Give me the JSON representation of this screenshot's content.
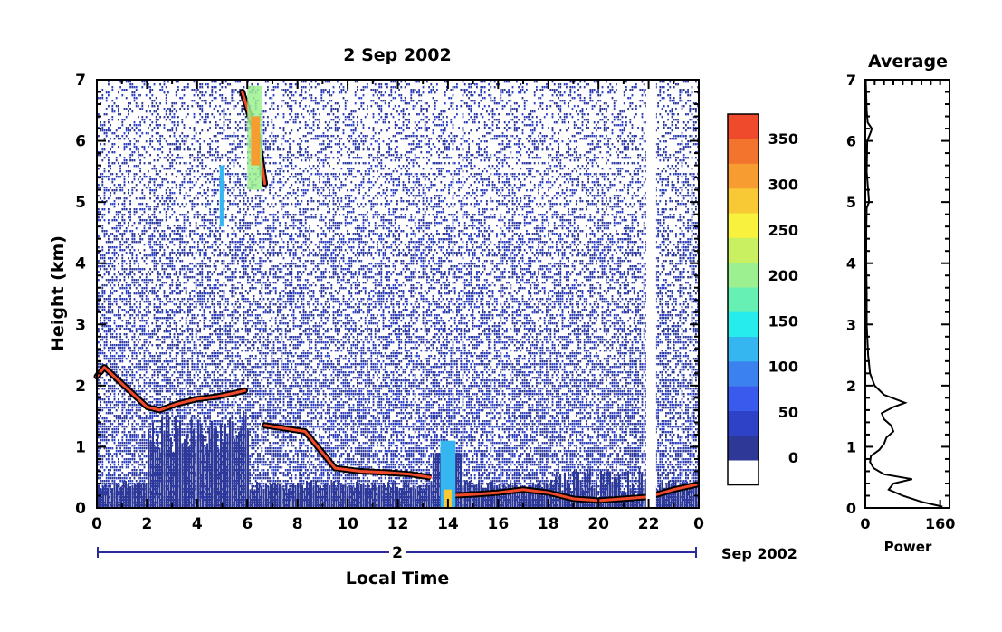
{
  "chart_data": [
    {
      "type": "heatmap",
      "title": "2 Sep 2002",
      "xlabel": "Local Time",
      "ylabel": "Height (km)",
      "x_ticks": [
        "0",
        "2",
        "4",
        "6",
        "8",
        "10",
        "12",
        "14",
        "16",
        "18",
        "20",
        "22",
        "0"
      ],
      "xlim": [
        0,
        24
      ],
      "y_ticks": [
        "0",
        "1",
        "2",
        "3",
        "4",
        "5",
        "6",
        "7"
      ],
      "ylim": [
        0,
        7
      ],
      "date_axis": {
        "day": "2",
        "month_year": "Sep 2002"
      },
      "colorbar": {
        "tick_labels": [
          "0",
          "50",
          "100",
          "150",
          "200",
          "250",
          "300",
          "350"
        ],
        "range": [
          0,
          380
        ],
        "colors": [
          "#ffffff",
          "#2e3896",
          "#2e42c8",
          "#3a5aee",
          "#3b82f0",
          "#35b6f0",
          "#26ecee",
          "#67f0b4",
          "#9cf090",
          "#c8f060",
          "#f8f23e",
          "#f8c835",
          "#f69c30",
          "#f3742c",
          "#f04a2c"
        ]
      },
      "features": [
        {
          "desc": "mixed-layer top layer",
          "x": [
            0.0,
            0.3,
            2.0,
            2.5,
            3.2,
            4.0,
            4.8,
            5.5,
            5.9
          ],
          "y": [
            2.15,
            2.3,
            1.65,
            1.6,
            1.7,
            1.78,
            1.82,
            1.88,
            1.92
          ]
        },
        {
          "desc": "low layer",
          "x": [
            6.7,
            7.5,
            8.3,
            9.5,
            10.5,
            11.5,
            12.5,
            13.3
          ],
          "y": [
            1.35,
            1.3,
            1.25,
            0.65,
            0.6,
            0.58,
            0.55,
            0.5
          ]
        },
        {
          "desc": "surface layer",
          "x": [
            14.0,
            15.0,
            16.0,
            17.0,
            18.0,
            19.0,
            20.0,
            21.0,
            22.0,
            23.0,
            23.9
          ],
          "y": [
            0.2,
            0.22,
            0.25,
            0.3,
            0.25,
            0.15,
            0.12,
            0.15,
            0.18,
            0.3,
            0.38
          ]
        },
        {
          "desc": "high cloud",
          "x": [
            5.8,
            6.1,
            6.4,
            6.7
          ],
          "y": [
            6.8,
            6.4,
            6.1,
            5.3
          ]
        }
      ]
    },
    {
      "type": "line",
      "title": "Average",
      "xlabel": "Power",
      "ylabel": "",
      "x_ticks": [
        "0",
        "160"
      ],
      "xlim": [
        0,
        180
      ],
      "y_ticks": [
        "0",
        "1",
        "2",
        "3",
        "4",
        "5",
        "6",
        "7"
      ],
      "ylim": [
        0,
        7
      ],
      "series": [
        {
          "height": [
            0.02,
            0.1,
            0.2,
            0.3,
            0.4,
            0.47,
            0.55,
            0.65,
            0.75,
            0.85,
            0.95,
            1.05,
            1.15,
            1.25,
            1.35,
            1.45,
            1.55,
            1.65,
            1.72,
            1.85,
            2.0,
            2.2,
            2.5,
            3.0,
            3.5,
            4.0,
            4.5,
            4.9,
            5.0,
            5.5,
            6.0,
            6.15,
            6.2,
            6.3,
            6.5,
            7.0
          ],
          "power": [
            165,
            120,
            80,
            50,
            60,
            100,
            40,
            18,
            10,
            12,
            30,
            40,
            45,
            60,
            55,
            40,
            35,
            60,
            85,
            40,
            20,
            10,
            6,
            3,
            3,
            2,
            2,
            3,
            8,
            3,
            4,
            12,
            14,
            5,
            3,
            1
          ]
        }
      ]
    }
  ]
}
